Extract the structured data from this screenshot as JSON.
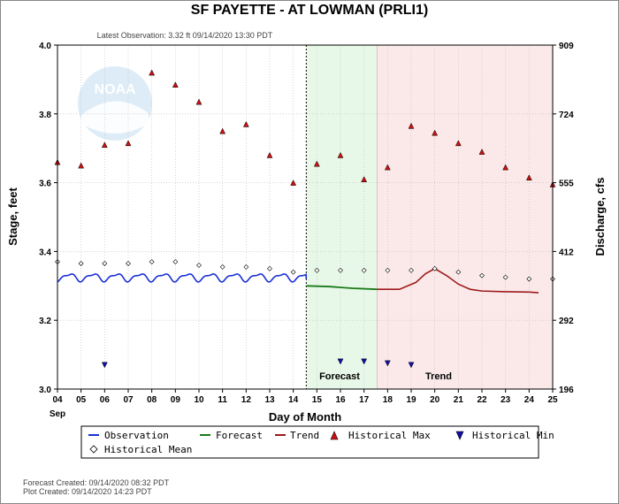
{
  "header": {
    "title": "SF PAYETTE - AT LOWMAN  (PRLI1)",
    "latest_observation": "Latest Observation: 3.32 ft 09/14/2020 13:30 PDT"
  },
  "footer": {
    "forecast_created": "Forecast Created: 09/14/2020 08:32 PDT",
    "plot_created": "Plot Created: 09/14/2020 14:23 PDT"
  },
  "watermark": {
    "text": "NOAA"
  },
  "colors": {
    "observation": "#1a2fd6",
    "forecast": "#1a7a1a",
    "trend": "#9c1a1a",
    "hist_max": "#cc1111",
    "hist_min": "#1111aa",
    "forecast_zone": "#e8f8e8",
    "trend_zone": "#fbe9ea"
  },
  "zones": {
    "forecast_label": "Forecast",
    "trend_label": "Trend"
  },
  "legend": {
    "observation": "Observation",
    "forecast": "Forecast",
    "trend": "Trend",
    "historical_max": "Historical Max",
    "historical_min": "Historical Min",
    "historical_mean": "Historical Mean"
  },
  "chart_data": {
    "type": "line",
    "xlabel": "Day of Month",
    "ylabel": "Stage, feet",
    "y2label": "Discharge, cfs",
    "xlim": [
      4,
      25
    ],
    "ylim": [
      3.0,
      4.0
    ],
    "x_ticks": [
      "04",
      "05",
      "06",
      "07",
      "08",
      "09",
      "10",
      "11",
      "12",
      "13",
      "14",
      "15",
      "16",
      "17",
      "18",
      "19",
      "20",
      "21",
      "22",
      "23",
      "24",
      "25"
    ],
    "x_month_label": "Sep",
    "y_ticks": [
      "3.0",
      "3.2",
      "3.4",
      "3.6",
      "3.8",
      "4.0"
    ],
    "y2_ticks": [
      {
        "label": "196",
        "stage": 3.0
      },
      {
        "label": "292",
        "stage": 3.2
      },
      {
        "label": "412",
        "stage": 3.4
      },
      {
        "label": "555",
        "stage": 3.6
      },
      {
        "label": "724",
        "stage": 3.8
      },
      {
        "label": "909",
        "stage": 4.0
      }
    ],
    "now_x": 14.55,
    "forecast_end_x": 17.55,
    "observation": {
      "x_start": 4.0,
      "x_end": 14.55,
      "base": 3.325,
      "amplitude": 0.02,
      "period_days": 1.0,
      "end_value": 3.32
    },
    "forecast": [
      [
        14.55,
        3.3
      ],
      [
        15.5,
        3.298
      ],
      [
        16.5,
        3.293
      ],
      [
        17.55,
        3.29
      ]
    ],
    "trend": [
      [
        17.55,
        3.29
      ],
      [
        18.5,
        3.29
      ],
      [
        19.2,
        3.31
      ],
      [
        19.6,
        3.335
      ],
      [
        20.0,
        3.35
      ],
      [
        20.5,
        3.33
      ],
      [
        21.0,
        3.305
      ],
      [
        21.5,
        3.29
      ],
      [
        22.0,
        3.285
      ],
      [
        23.0,
        3.283
      ],
      [
        24.0,
        3.282
      ],
      [
        24.4,
        3.28
      ]
    ],
    "historical_max": [
      [
        4,
        3.66
      ],
      [
        5,
        3.65
      ],
      [
        6,
        3.71
      ],
      [
        7,
        3.715
      ],
      [
        8,
        3.92
      ],
      [
        9,
        3.885
      ],
      [
        10,
        3.835
      ],
      [
        11,
        3.75
      ],
      [
        12,
        3.77
      ],
      [
        13,
        3.68
      ],
      [
        14,
        3.6
      ],
      [
        15,
        3.655
      ],
      [
        16,
        3.68
      ],
      [
        17,
        3.61
      ],
      [
        18,
        3.645
      ],
      [
        19,
        3.765
      ],
      [
        20,
        3.745
      ],
      [
        21,
        3.715
      ],
      [
        22,
        3.69
      ],
      [
        23,
        3.645
      ],
      [
        24,
        3.615
      ],
      [
        25,
        3.595
      ]
    ],
    "historical_min": [
      [
        6,
        3.07
      ],
      [
        16,
        3.08
      ],
      [
        17,
        3.08
      ],
      [
        18,
        3.075
      ],
      [
        19,
        3.07
      ]
    ],
    "historical_mean": [
      [
        4,
        3.37
      ],
      [
        5,
        3.365
      ],
      [
        6,
        3.365
      ],
      [
        7,
        3.365
      ],
      [
        8,
        3.37
      ],
      [
        9,
        3.37
      ],
      [
        10,
        3.36
      ],
      [
        11,
        3.355
      ],
      [
        12,
        3.355
      ],
      [
        13,
        3.35
      ],
      [
        14,
        3.34
      ],
      [
        15,
        3.345
      ],
      [
        16,
        3.345
      ],
      [
        17,
        3.345
      ],
      [
        18,
        3.345
      ],
      [
        19,
        3.345
      ],
      [
        20,
        3.35
      ],
      [
        21,
        3.34
      ],
      [
        22,
        3.33
      ],
      [
        23,
        3.325
      ],
      [
        24,
        3.32
      ],
      [
        25,
        3.32
      ]
    ],
    "grid": true,
    "legend_position": "bottom"
  }
}
